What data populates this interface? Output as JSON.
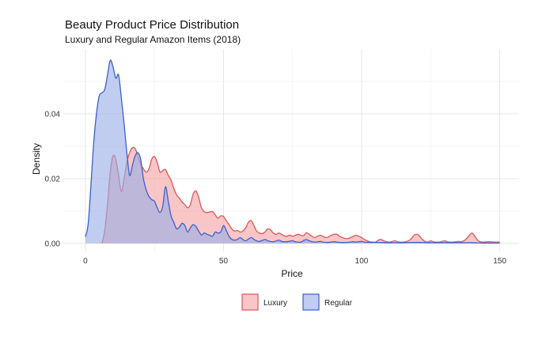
{
  "chart_data": {
    "type": "area",
    "title": "Beauty Product Price Distribution",
    "subtitle": "Luxury and Regular Amazon Items (2018)",
    "xlabel": "Price",
    "ylabel": "Density",
    "xlim": [
      -8,
      157
    ],
    "ylim": [
      -0.0025,
      0.06
    ],
    "xticks": [
      0,
      50,
      100,
      150
    ],
    "xtick_labels": [
      "0",
      "50",
      "100",
      "150"
    ],
    "yticks": [
      0.0,
      0.02,
      0.04
    ],
    "ytick_labels": [
      "0.00",
      "0.02",
      "0.04"
    ],
    "grid": true,
    "legend_position": "bottom",
    "series": [
      {
        "name": "Luxury",
        "fill": "#f4a3a3",
        "stroke": "#e05555",
        "points": [
          [
            6,
            0
          ],
          [
            7,
            0.004
          ],
          [
            8,
            0.012
          ],
          [
            9,
            0.022
          ],
          [
            10,
            0.027
          ],
          [
            11,
            0.026
          ],
          [
            12,
            0.021
          ],
          [
            13,
            0.016
          ],
          [
            14,
            0.02
          ],
          [
            15,
            0.025
          ],
          [
            16,
            0.028
          ],
          [
            17,
            0.0295
          ],
          [
            18,
            0.0293
          ],
          [
            19,
            0.027
          ],
          [
            20,
            0.0245
          ],
          [
            21,
            0.023
          ],
          [
            22,
            0.022
          ],
          [
            23,
            0.023
          ],
          [
            24,
            0.026
          ],
          [
            25,
            0.0268
          ],
          [
            26,
            0.025
          ],
          [
            27,
            0.022
          ],
          [
            28,
            0.0225
          ],
          [
            29,
            0.0228
          ],
          [
            30,
            0.021
          ],
          [
            31,
            0.0195
          ],
          [
            32,
            0.017
          ],
          [
            33,
            0.015
          ],
          [
            34,
            0.014
          ],
          [
            35,
            0.0128
          ],
          [
            36,
            0.012
          ],
          [
            37,
            0.011
          ],
          [
            38,
            0.012
          ],
          [
            39,
            0.0152
          ],
          [
            40,
            0.0162
          ],
          [
            41,
            0.0142
          ],
          [
            42,
            0.011
          ],
          [
            43,
            0.0098
          ],
          [
            44,
            0.0095
          ],
          [
            45,
            0.0097
          ],
          [
            46,
            0.0098
          ],
          [
            47,
            0.0088
          ],
          [
            48,
            0.0078
          ],
          [
            49,
            0.0085
          ],
          [
            50,
            0.0083
          ],
          [
            51,
            0.007
          ],
          [
            52,
            0.0058
          ],
          [
            53,
            0.0045
          ],
          [
            54,
            0.0038
          ],
          [
            55,
            0.004
          ],
          [
            56,
            0.0035
          ],
          [
            57,
            0.0038
          ],
          [
            58,
            0.0048
          ],
          [
            59,
            0.0065
          ],
          [
            60,
            0.007
          ],
          [
            61,
            0.0055
          ],
          [
            62,
            0.0038
          ],
          [
            63,
            0.0032
          ],
          [
            64,
            0.003
          ],
          [
            65,
            0.0035
          ],
          [
            66,
            0.0045
          ],
          [
            67,
            0.0042
          ],
          [
            68,
            0.0032
          ],
          [
            69,
            0.0028
          ],
          [
            70,
            0.0032
          ],
          [
            71,
            0.0028
          ],
          [
            72,
            0.0023
          ],
          [
            73,
            0.0022
          ],
          [
            74,
            0.0025
          ],
          [
            75,
            0.0022
          ],
          [
            76,
            0.0025
          ],
          [
            77,
            0.0028
          ],
          [
            78,
            0.0025
          ],
          [
            79,
            0.0024
          ],
          [
            80,
            0.0033
          ],
          [
            81,
            0.0028
          ],
          [
            82,
            0.0022
          ],
          [
            83,
            0.0018
          ],
          [
            84,
            0.0022
          ],
          [
            85,
            0.0025
          ],
          [
            86,
            0.0022
          ],
          [
            87,
            0.0018
          ],
          [
            88,
            0.002
          ],
          [
            89,
            0.0025
          ],
          [
            90,
            0.0028
          ],
          [
            91,
            0.0028
          ],
          [
            92,
            0.0022
          ],
          [
            93,
            0.0018
          ],
          [
            94,
            0.0015
          ],
          [
            95,
            0.0015
          ],
          [
            96,
            0.0018
          ],
          [
            97,
            0.0022
          ],
          [
            98,
            0.0025
          ],
          [
            99,
            0.0022
          ],
          [
            100,
            0.0018
          ],
          [
            101,
            0.0012
          ],
          [
            102,
            0.0008
          ],
          [
            103,
            0.0005
          ],
          [
            105,
            0.0004
          ],
          [
            106,
            0.001
          ],
          [
            107,
            0.0012
          ],
          [
            108,
            0.0008
          ],
          [
            110,
            0.0004
          ],
          [
            112,
            0.0008
          ],
          [
            113,
            0.0005
          ],
          [
            115,
            0.0004
          ],
          [
            117,
            0.0008
          ],
          [
            118,
            0.0015
          ],
          [
            119,
            0.0025
          ],
          [
            120,
            0.0028
          ],
          [
            121,
            0.0022
          ],
          [
            122,
            0.0012
          ],
          [
            123,
            0.0006
          ],
          [
            124,
            0.0004
          ],
          [
            125,
            0.0008
          ],
          [
            126,
            0.0005
          ],
          [
            128,
            0.0004
          ],
          [
            130,
            0.0008
          ],
          [
            131,
            0.0005
          ],
          [
            133,
            0.0004
          ],
          [
            135,
            0.0006
          ],
          [
            136,
            0.0005
          ],
          [
            137,
            0.0008
          ],
          [
            138,
            0.0015
          ],
          [
            139,
            0.0025
          ],
          [
            140,
            0.0032
          ],
          [
            141,
            0.0022
          ],
          [
            142,
            0.001
          ],
          [
            143,
            0.0005
          ],
          [
            144,
            0.0004
          ],
          [
            146,
            0.0005
          ],
          [
            148,
            0.0004
          ],
          [
            150,
            0.0004
          ]
        ]
      },
      {
        "name": "Regular",
        "fill": "#9aaee6",
        "stroke": "#3b5fd1",
        "points": [
          [
            0,
            0.002
          ],
          [
            1,
            0.006
          ],
          [
            2,
            0.018
          ],
          [
            3,
            0.031
          ],
          [
            4,
            0.04
          ],
          [
            5,
            0.0455
          ],
          [
            6,
            0.0465
          ],
          [
            7,
            0.0475
          ],
          [
            8,
            0.052
          ],
          [
            9,
            0.0565
          ],
          [
            10,
            0.0545
          ],
          [
            11,
            0.051
          ],
          [
            12,
            0.052
          ],
          [
            13,
            0.045
          ],
          [
            14,
            0.037
          ],
          [
            15,
            0.028
          ],
          [
            16,
            0.021
          ],
          [
            17,
            0.024
          ],
          [
            18,
            0.027
          ],
          [
            19,
            0.028
          ],
          [
            20,
            0.026
          ],
          [
            21,
            0.02
          ],
          [
            22,
            0.0165
          ],
          [
            23,
            0.0145
          ],
          [
            24,
            0.0135
          ],
          [
            25,
            0.013
          ],
          [
            26,
            0.011
          ],
          [
            27,
            0.0095
          ],
          [
            28,
            0.0115
          ],
          [
            29,
            0.0175
          ],
          [
            30,
            0.013
          ],
          [
            31,
            0.0085
          ],
          [
            32,
            0.0065
          ],
          [
            33,
            0.0045
          ],
          [
            34,
            0.005
          ],
          [
            35,
            0.0062
          ],
          [
            36,
            0.0055
          ],
          [
            37,
            0.0035
          ],
          [
            38,
            0.0048
          ],
          [
            39,
            0.0058
          ],
          [
            40,
            0.0052
          ],
          [
            41,
            0.0038
          ],
          [
            42,
            0.0026
          ],
          [
            43,
            0.0032
          ],
          [
            44,
            0.0028
          ],
          [
            45,
            0.0025
          ],
          [
            46,
            0.0022
          ],
          [
            47,
            0.0035
          ],
          [
            48,
            0.0032
          ],
          [
            49,
            0.0035
          ],
          [
            50,
            0.0055
          ],
          [
            51,
            0.004
          ],
          [
            52,
            0.0022
          ],
          [
            53,
            0.0012
          ],
          [
            54,
            0.001
          ],
          [
            55,
            0.0012
          ],
          [
            56,
            0.0018
          ],
          [
            57,
            0.0012
          ],
          [
            58,
            0.0008
          ],
          [
            60,
            0.0018
          ],
          [
            61,
            0.0012
          ],
          [
            62,
            0.0008
          ],
          [
            63,
            0.0006
          ],
          [
            65,
            0.0012
          ],
          [
            66,
            0.0008
          ],
          [
            68,
            0.0005
          ],
          [
            70,
            0.001
          ],
          [
            71,
            0.0006
          ],
          [
            73,
            0.0005
          ],
          [
            75,
            0.0008
          ],
          [
            76,
            0.0005
          ],
          [
            78,
            0.0004
          ],
          [
            79,
            0.0009
          ],
          [
            80,
            0.0012
          ],
          [
            81,
            0.0008
          ],
          [
            83,
            0.0004
          ],
          [
            85,
            0.0006
          ],
          [
            86,
            0.0004
          ],
          [
            88,
            0.0003
          ],
          [
            90,
            0.0005
          ],
          [
            92,
            0.0003
          ],
          [
            95,
            0.0003
          ],
          [
            97,
            0.0005
          ],
          [
            98,
            0.0004
          ],
          [
            100,
            0.0006
          ],
          [
            101,
            0.0004
          ],
          [
            103,
            0.0003
          ],
          [
            106,
            0.0003
          ],
          [
            110,
            0.0002
          ],
          [
            115,
            0.0002
          ],
          [
            120,
            0.0003
          ],
          [
            125,
            0.0002
          ],
          [
            130,
            0.0002
          ],
          [
            135,
            0.0002
          ],
          [
            140,
            0.0002
          ],
          [
            145,
            0.0001
          ],
          [
            150,
            0.0001
          ]
        ]
      }
    ]
  }
}
